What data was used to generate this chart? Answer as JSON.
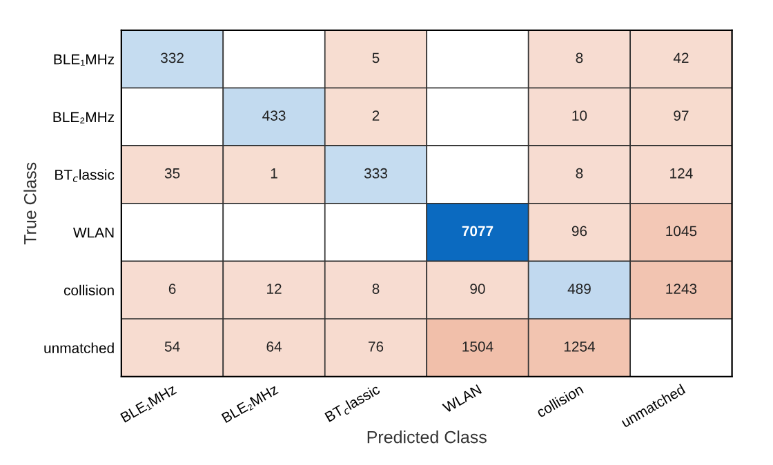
{
  "chart_data": {
    "type": "heatmap",
    "xlabel": "Predicted Class",
    "ylabel": "True Class",
    "categories": [
      "BLE₁MHz",
      "BLE₂MHz",
      "BT$_{c}$lassic",
      "WLAN",
      "collision",
      "unmatched"
    ],
    "y_categories": [
      "BLE₁MHz",
      "BLE₂MHz",
      "BT$_{c}$lassic",
      "WLAN",
      "collision",
      "unmatched"
    ],
    "cells": [
      [
        332,
        null,
        5,
        null,
        8,
        42
      ],
      [
        null,
        433,
        2,
        null,
        10,
        97
      ],
      [
        35,
        1,
        333,
        null,
        8,
        124
      ],
      [
        null,
        null,
        null,
        7077,
        96,
        1045
      ],
      [
        6,
        12,
        8,
        90,
        489,
        1243
      ],
      [
        54,
        64,
        76,
        1504,
        1254,
        null
      ]
    ],
    "colors": [
      "#0b6ac0",
      "#d95319"
    ],
    "data_labels": true
  }
}
